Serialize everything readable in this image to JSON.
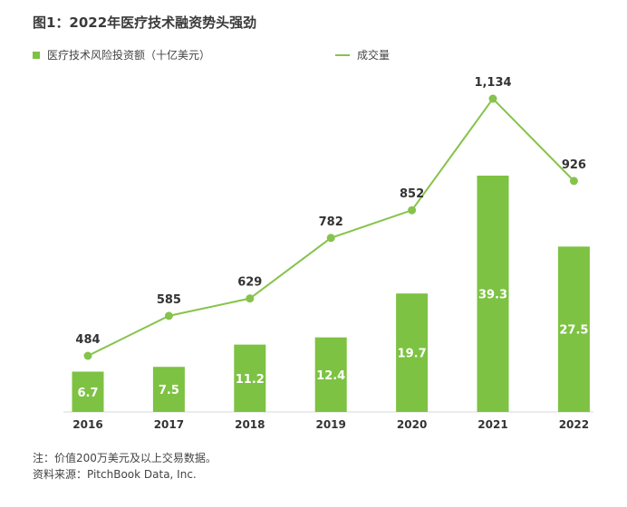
{
  "title": "图1：2022年医疗技术融资势头强劲",
  "legend": {
    "bar_label": "医疗技术风险投资额（十亿美元）",
    "line_label": "成交量"
  },
  "colors": {
    "bar": "#7DC242",
    "line": "#86C34C",
    "bar_label_text": "#ffffff",
    "line_label_text": "#333333"
  },
  "notes": {
    "note": "注：价值200万美元及以上交易数据。",
    "source": "资料来源：PitchBook Data, Inc."
  },
  "chart_data": {
    "type": "bar",
    "categories": [
      "2016",
      "2017",
      "2018",
      "2019",
      "2020",
      "2021",
      "2022"
    ],
    "series": [
      {
        "name": "医疗技术风险投资额（十亿美元）",
        "type": "bar",
        "values": [
          6.7,
          7.5,
          11.2,
          12.4,
          19.7,
          39.3,
          27.5
        ]
      },
      {
        "name": "成交量",
        "type": "line",
        "values": [
          484,
          585,
          629,
          782,
          852,
          1134,
          926
        ]
      }
    ],
    "bar_labels": [
      "6.7",
      "7.5",
      "11.2",
      "12.4",
      "19.7",
      "39.3",
      "27.5"
    ],
    "line_labels": [
      "484",
      "585",
      "629",
      "782",
      "852",
      "1,134",
      "926"
    ],
    "grid": false,
    "legend_position": "top-left"
  }
}
